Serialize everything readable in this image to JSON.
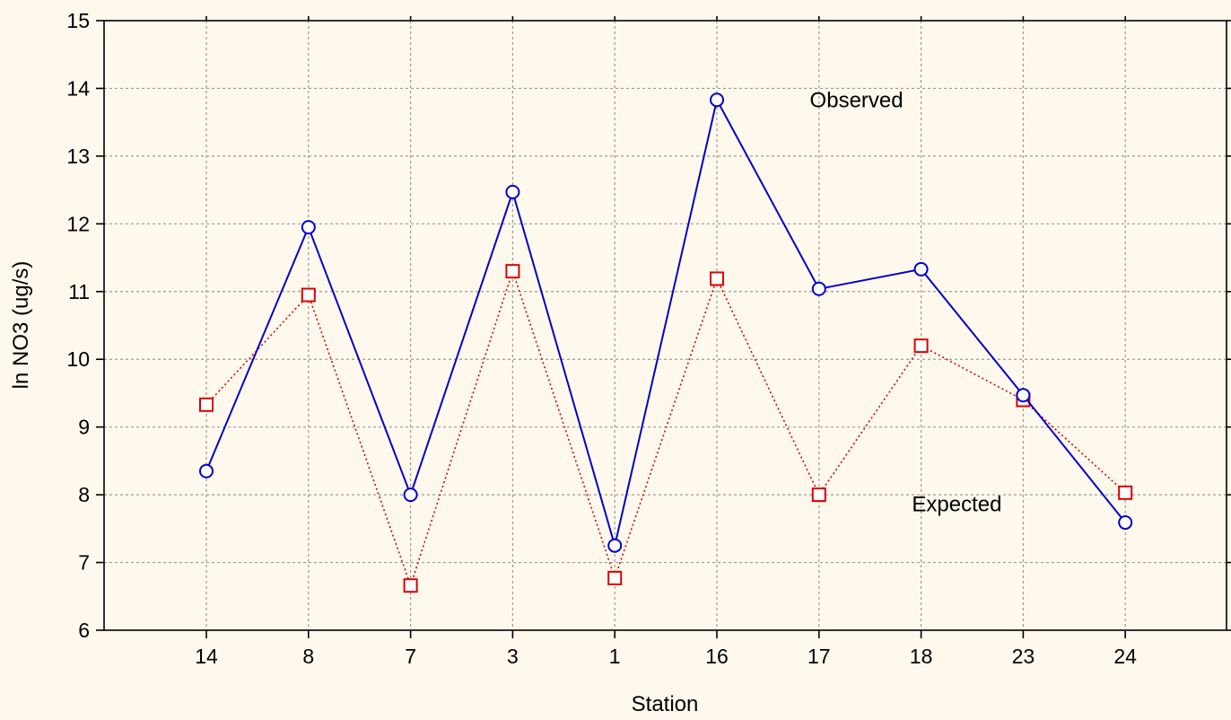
{
  "chart_data": {
    "type": "line",
    "categories": [
      "14",
      "8",
      "7",
      "3",
      "1",
      "16",
      "17",
      "18",
      "23",
      "24"
    ],
    "xlabel": "Station",
    "ylabel": "ln NO3 (ug/s)",
    "ylim": [
      6,
      15
    ],
    "yticks": [
      "6",
      "7",
      "8",
      "9",
      "10",
      "11",
      "12",
      "13",
      "14",
      "15"
    ],
    "grid": true,
    "series": [
      {
        "name": "Observed",
        "values": [
          8.35,
          11.95,
          8.0,
          12.47,
          7.25,
          13.83,
          11.04,
          11.33,
          9.47,
          7.59
        ],
        "color": "#0000CC",
        "line_style": "solid",
        "marker": "circle"
      },
      {
        "name": "Expected",
        "values": [
          9.33,
          10.95,
          6.66,
          11.3,
          6.77,
          11.19,
          8.0,
          10.2,
          9.4,
          8.03
        ],
        "color": "#DD0000",
        "line_style": "dotted",
        "marker": "square"
      }
    ],
    "annotations": [
      {
        "text": "Observed",
        "x_index": 6.2,
        "y": 13.83
      },
      {
        "text": "Expected",
        "x_index": 7.2,
        "y": 7.86
      }
    ]
  }
}
